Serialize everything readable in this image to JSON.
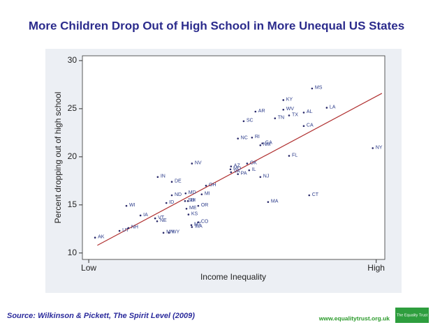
{
  "chart_data": {
    "type": "scatter",
    "title": "More Children Drop Out of High School in More Unequal US States",
    "x_label": "Income Inequality",
    "y_label": "Percent dropping out of high school",
    "xlim": [
      -0.022,
      1.03
    ],
    "ylim": [
      9.33,
      30.5
    ],
    "xticks": [
      {
        "value": 0,
        "label": "Low"
      },
      {
        "value": 1,
        "label": "High"
      }
    ],
    "yticks": [
      10,
      15,
      20,
      25,
      30
    ],
    "grid": false,
    "color": "#2a2a6a",
    "labels": [
      "AK",
      "UT",
      "NH",
      "WI",
      "IA",
      "VT",
      "NE",
      "MN",
      "WY",
      "IN",
      "DE",
      "ID",
      "ND",
      "SD",
      "HI",
      "MD",
      "ME",
      "KS",
      "OR",
      "MT",
      "WA",
      "CO",
      "NV",
      "MI",
      "OH",
      "AZ",
      "MO",
      "VA",
      "PA",
      "OK",
      "IL",
      "NJ",
      "AR",
      "SC",
      "RI",
      "NC",
      "NM",
      "GA",
      "MA",
      "TN",
      "KY",
      "WV",
      "TX",
      "AL",
      "CA",
      "FL",
      "CT",
      "MS",
      "LA",
      "NY"
    ],
    "x": [
      0.022,
      0.107,
      0.138,
      0.131,
      0.18,
      0.231,
      0.238,
      0.26,
      0.279,
      0.24,
      0.289,
      0.27,
      0.289,
      0.335,
      0.345,
      0.337,
      0.34,
      0.347,
      0.381,
      0.357,
      0.359,
      0.381,
      0.359,
      0.393,
      0.408,
      0.495,
      0.493,
      0.495,
      0.519,
      0.551,
      0.558,
      0.597,
      0.58,
      0.539,
      0.568,
      0.519,
      0.597,
      0.604,
      0.624,
      0.648,
      0.677,
      0.677,
      0.697,
      0.748,
      0.748,
      0.697,
      0.767,
      0.777,
      0.828,
      0.988
    ],
    "y": [
      11.6,
      12.3,
      12.6,
      14.9,
      13.9,
      13.6,
      13.3,
      12.1,
      12.1,
      17.9,
      17.4,
      15.2,
      16.0,
      15.4,
      15.4,
      16.2,
      14.6,
      14.0,
      14.9,
      12.9,
      12.7,
      13.2,
      19.3,
      16.1,
      17.0,
      19.0,
      18.7,
      18.4,
      18.2,
      19.3,
      18.6,
      17.9,
      24.7,
      23.7,
      22.0,
      21.9,
      21.2,
      21.4,
      15.3,
      24.0,
      25.9,
      24.9,
      24.3,
      24.6,
      23.2,
      20.1,
      16.0,
      27.1,
      25.1,
      20.9
    ],
    "trendline": {
      "x": [
        0.03,
        1.02
      ],
      "y": [
        10.8,
        26.6
      ],
      "color": "#b03030"
    }
  },
  "source": "Source: Wilkinson & Pickett, The Spirit Level (2009)",
  "website": "www.equalitytrust.org.uk",
  "logo": "The Equality Trust"
}
